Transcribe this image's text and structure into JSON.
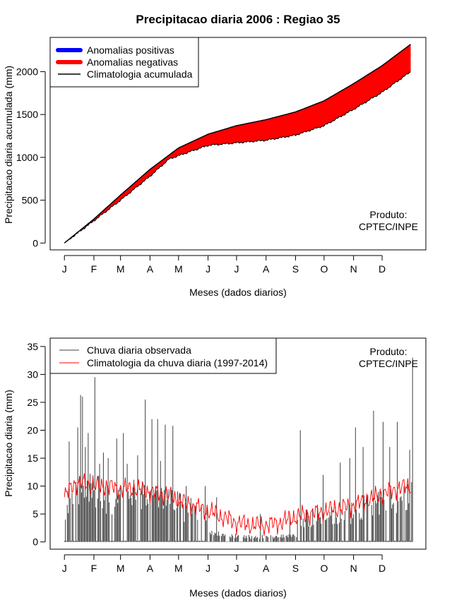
{
  "title": "Precipitacao diaria 2006 : Regiao 35",
  "chart_data": [
    {
      "type": "area",
      "ylabel": "Precipitacao diaria acumulada (mm)",
      "xlabel": "Meses (dados diarios)",
      "x_ticks": [
        "J",
        "F",
        "M",
        "A",
        "M",
        "J",
        "J",
        "A",
        "S",
        "O",
        "N",
        "D"
      ],
      "y_ticks": [
        0,
        500,
        1000,
        1500,
        2000
      ],
      "ylim": [
        -80,
        2400
      ],
      "xlim_days": [
        -15,
        380
      ],
      "legend": [
        {
          "label": "Anomalias positivas",
          "color": "#0000ff"
        },
        {
          "label": "Anomalias negativas",
          "color": "#ff0000"
        },
        {
          "label": "Climatologia acumulada",
          "color": "#000000"
        }
      ],
      "annotation": [
        "Produto:",
        "CPTEC/INPE"
      ],
      "climatology_accum": {
        "day": [
          0,
          31,
          59,
          90,
          120,
          151,
          181,
          212,
          243,
          273,
          304,
          334,
          364
        ],
        "value": [
          0,
          280,
          560,
          860,
          1110,
          1270,
          1370,
          1440,
          1530,
          1660,
          1860,
          2070,
          2320
        ]
      },
      "observed_accum": {
        "day": [
          0,
          31,
          59,
          90,
          110,
          120,
          151,
          181,
          212,
          243,
          273,
          304,
          334,
          364
        ],
        "value": [
          0,
          260,
          500,
          780,
          980,
          1020,
          1140,
          1170,
          1200,
          1260,
          1370,
          1560,
          1760,
          2000
        ]
      }
    },
    {
      "type": "bar",
      "ylabel": "Precipitacao diaria (mm)",
      "xlabel": "Meses (dados diarios)",
      "x_ticks": [
        "J",
        "F",
        "M",
        "A",
        "M",
        "J",
        "J",
        "A",
        "S",
        "O",
        "N",
        "D"
      ],
      "y_ticks": [
        0,
        5,
        10,
        15,
        20,
        25,
        30,
        35
      ],
      "ylim": [
        -1.3,
        36.5
      ],
      "xlim_days": [
        -15,
        380
      ],
      "legend": [
        {
          "label": "Chuva diaria observada",
          "color": "#404040"
        },
        {
          "label": "Climatologia da chuva diaria (1997-2014)",
          "color": "#ff0000"
        }
      ],
      "annotation": [
        "Produto:",
        "CPTEC/INPE"
      ],
      "daily_peaks_mm": [
        {
          "day": 1,
          "value": 4
        },
        {
          "day": 5,
          "value": 18
        },
        {
          "day": 14,
          "value": 20.5
        },
        {
          "day": 17,
          "value": 26.3
        },
        {
          "day": 19,
          "value": 26
        },
        {
          "day": 22,
          "value": 17
        },
        {
          "day": 25,
          "value": 19.5
        },
        {
          "day": 32,
          "value": 29.5
        },
        {
          "day": 37,
          "value": 14
        },
        {
          "day": 41,
          "value": 16
        },
        {
          "day": 46,
          "value": 15
        },
        {
          "day": 55,
          "value": 18.5
        },
        {
          "day": 62,
          "value": 19.5
        },
        {
          "day": 66,
          "value": 14
        },
        {
          "day": 77,
          "value": 15.5
        },
        {
          "day": 85,
          "value": 25.5
        },
        {
          "day": 92,
          "value": 22
        },
        {
          "day": 98,
          "value": 22
        },
        {
          "day": 101,
          "value": 14.5
        },
        {
          "day": 106,
          "value": 21
        },
        {
          "day": 114,
          "value": 20.8
        },
        {
          "day": 128,
          "value": 10
        },
        {
          "day": 148,
          "value": 10
        },
        {
          "day": 160,
          "value": 8
        },
        {
          "day": 206,
          "value": 5
        },
        {
          "day": 237,
          "value": 5
        },
        {
          "day": 248,
          "value": 20
        },
        {
          "day": 272,
          "value": 12
        },
        {
          "day": 290,
          "value": 14.2
        },
        {
          "day": 300,
          "value": 15
        },
        {
          "day": 306,
          "value": 20.5
        },
        {
          "day": 314,
          "value": 17
        },
        {
          "day": 325,
          "value": 23.5
        },
        {
          "day": 335,
          "value": 21.5
        },
        {
          "day": 342,
          "value": 17
        },
        {
          "day": 350,
          "value": 21.5
        },
        {
          "day": 357,
          "value": 10
        },
        {
          "day": 363,
          "value": 16.5
        },
        {
          "day": 366,
          "value": 33
        }
      ],
      "climatology_daily": {
        "day": [
          0,
          10,
          20,
          31,
          45,
          59,
          75,
          90,
          105,
          120,
          135,
          151,
          166,
          181,
          196,
          212,
          227,
          243,
          258,
          273,
          288,
          304,
          319,
          334,
          349,
          364
        ],
        "value": [
          8,
          10.5,
          10.5,
          10,
          10,
          9.5,
          9.5,
          9,
          8.5,
          7.5,
          6.5,
          5.5,
          4.5,
          3.5,
          3,
          3,
          3.5,
          4.5,
          5,
          5.5,
          6,
          6.5,
          7.5,
          8.5,
          9.5,
          10
        ]
      }
    }
  ]
}
